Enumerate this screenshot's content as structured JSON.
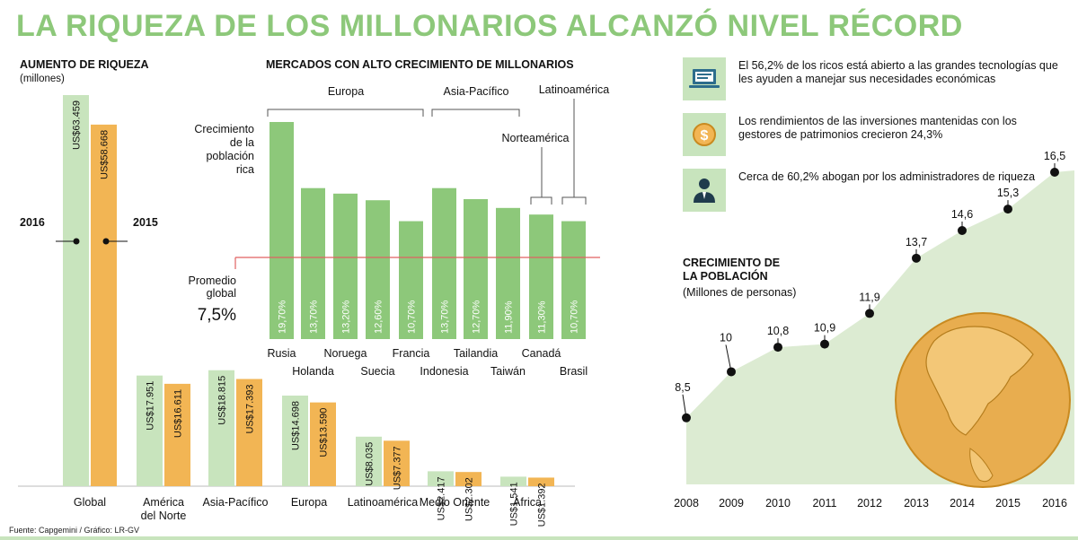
{
  "title": "LA RIQUEZA DE LOS MILLONARIOS ALCANZÓ  NIVEL RÉCORD",
  "footer": "Fuente: Capgemini / Gráfico: LR-GV",
  "colors": {
    "green_light": "#c8e4bd",
    "green": "#8dc87a",
    "orange": "#f2b554",
    "red_line": "#e06060",
    "area": "#dcebd2",
    "globe": "#e8ad4f"
  },
  "info": [
    {
      "icon": "laptop-icon",
      "text": "El 56,2% de los ricos está abierto a las grandes tecnologías que les ayuden a manejar sus necesidades económicas"
    },
    {
      "icon": "dollar-coin-icon",
      "text": "Los rendimientos de las inversiones mantenidas con los gestores de patrimonios crecieron 24,3%"
    },
    {
      "icon": "businessman-icon",
      "text": "Cerca de 60,2% abogan por los administradores de riqueza"
    }
  ],
  "chart_data": [
    {
      "type": "bar",
      "title": "AUMENTO DE RIQUEZA",
      "subtitle": "(millones)",
      "legend": [
        "2016",
        "2015"
      ],
      "categories": [
        "Global",
        "América\ndel Norte",
        "Asia-Pacífico",
        "Europa",
        "Latinoamérica",
        "Medio Oriente",
        "África"
      ],
      "series": [
        {
          "name": "2016",
          "values": [
            63459,
            17951,
            18815,
            14698,
            8035,
            2417,
            1541
          ],
          "labels": [
            "US$63.459",
            "US$17.951",
            "US$18.815",
            "US$14.698",
            "US$8.035",
            "US$2.417",
            "US$1.541"
          ]
        },
        {
          "name": "2015",
          "values": [
            58668,
            16611,
            17393,
            13590,
            7377,
            2302,
            1392
          ],
          "labels": [
            "US$58.668",
            "US$16.611",
            "US$17.393",
            "US$13.590",
            "US$7.377",
            "US$2.302",
            "US$1.392"
          ]
        }
      ]
    },
    {
      "type": "bar",
      "title": "MERCADOS CON ALTO CRECIMIENTO DE MILLONARIOS",
      "ylabel": "Crecimiento de la población rica",
      "average_label": "Promedio global",
      "average_value_label": "7,5%",
      "average": 7.5,
      "groups": [
        "Europa",
        "Asia-Pacífico",
        "Norteamérica",
        "Latinoamérica"
      ],
      "categories": [
        "Rusia",
        "Holanda",
        "Noruega",
        "Suecia",
        "Francia",
        "Indonesia",
        "Tailandia",
        "Taiwán",
        "Canadá",
        "Brasil"
      ],
      "values": [
        19.7,
        13.7,
        13.2,
        12.6,
        10.7,
        13.7,
        12.7,
        11.9,
        11.3,
        10.7
      ],
      "labels": [
        "19,70%",
        "13,70%",
        "13,20%",
        "12,60%",
        "10,70%",
        "13,70%",
        "12,70%",
        "11,90%",
        "11,30%",
        "10,70%"
      ]
    },
    {
      "type": "area",
      "title": "CRECIMIENTO DE LA POBLACIÓN",
      "subtitle": "(Millones de personas)",
      "x": [
        "2008",
        "2009",
        "2010",
        "2011",
        "2012",
        "2013",
        "2014",
        "2015",
        "2016"
      ],
      "values": [
        8.5,
        10,
        10.8,
        10.9,
        11.9,
        13.7,
        14.6,
        15.3,
        16.5
      ],
      "labels": [
        "8,5",
        "10",
        "10,8",
        "10,9",
        "11,9",
        "13,7",
        "14,6",
        "15,3",
        "16,5"
      ]
    }
  ]
}
